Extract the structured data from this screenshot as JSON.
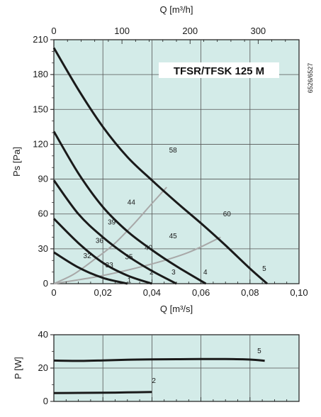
{
  "colors": {
    "plot_bg": "#d3ebe8",
    "grid": "#555555",
    "curve": "#1a1a1a",
    "rpm_line": "#a8a8a8"
  },
  "chart_data": [
    {
      "type": "line",
      "title": "TFSR/TFSK 125 M",
      "code": "6526/6527",
      "xlabel": "Q [m³/s]",
      "x2label": "Q [m³/h]",
      "ylabel": "Ps [Pa]",
      "xlim": [
        0,
        0.1
      ],
      "ylim": [
        0,
        210
      ],
      "x2lim": [
        0,
        360
      ],
      "x_ticks": [
        "0",
        "0,02",
        "0,04",
        "0,06",
        "0,08",
        "0,10"
      ],
      "x2_ticks": [
        "0",
        "100",
        "200",
        "300"
      ],
      "y_ticks": [
        "0",
        "30",
        "60",
        "90",
        "120",
        "150",
        "180",
        "210"
      ],
      "grid": true,
      "series": [
        {
          "name": "1",
          "x": [
            0,
            0.01,
            0.02,
            0.03
          ],
          "y": [
            27,
            14,
            5,
            0
          ]
        },
        {
          "name": "2",
          "x": [
            0,
            0.01,
            0.02,
            0.03,
            0.04
          ],
          "y": [
            56,
            35,
            18,
            7,
            0
          ]
        },
        {
          "name": "3",
          "x": [
            0,
            0.01,
            0.02,
            0.03,
            0.04,
            0.05
          ],
          "y": [
            89,
            60,
            40,
            24,
            11,
            0
          ]
        },
        {
          "name": "4",
          "x": [
            0,
            0.01,
            0.02,
            0.03,
            0.04,
            0.05,
            0.062
          ],
          "y": [
            131,
            95,
            66,
            45,
            29,
            15,
            0
          ]
        },
        {
          "name": "5",
          "x": [
            0,
            0.01,
            0.02,
            0.03,
            0.04,
            0.05,
            0.06,
            0.07,
            0.08,
            0.087
          ],
          "y": [
            203,
            167,
            135,
            109,
            89,
            70,
            52,
            33,
            13,
            0
          ]
        }
      ],
      "rpm_lines": [
        {
          "x": [
            0,
            0.008,
            0.016,
            0.024,
            0.032,
            0.04,
            0.046
          ],
          "y": [
            0,
            8,
            20,
            33,
            50,
            69,
            83
          ]
        },
        {
          "x": [
            0,
            0.02,
            0.04,
            0.055,
            0.068
          ],
          "y": [
            0,
            7,
            17,
            27,
            40
          ]
        }
      ],
      "labels": [
        {
          "text": "1",
          "x": 0.03,
          "y": 1
        },
        {
          "text": "2",
          "x": 0.039,
          "y": 8
        },
        {
          "text": "3",
          "x": 0.048,
          "y": 8
        },
        {
          "text": "4",
          "x": 0.061,
          "y": 8
        },
        {
          "text": "5",
          "x": 0.085,
          "y": 11
        },
        {
          "text": "32",
          "x": 0.012,
          "y": 22
        },
        {
          "text": "33",
          "x": 0.021,
          "y": 14
        },
        {
          "text": "35",
          "x": 0.029,
          "y": 21
        },
        {
          "text": "36",
          "x": 0.017,
          "y": 35
        },
        {
          "text": "39",
          "x": 0.022,
          "y": 51
        },
        {
          "text": "40",
          "x": 0.037,
          "y": 29
        },
        {
          "text": "44",
          "x": 0.03,
          "y": 68
        },
        {
          "text": "45",
          "x": 0.047,
          "y": 39
        },
        {
          "text": "58",
          "x": 0.047,
          "y": 113
        },
        {
          "text": "60",
          "x": 0.069,
          "y": 58
        }
      ]
    },
    {
      "type": "line",
      "ylabel": "P [W]",
      "xlim": [
        0,
        0.1
      ],
      "ylim": [
        0,
        40
      ],
      "y_ticks": [
        "0",
        "20",
        "40"
      ],
      "grid": true,
      "series": [
        {
          "name": "5",
          "x": [
            0,
            0.01,
            0.02,
            0.03,
            0.04,
            0.05,
            0.06,
            0.07,
            0.08,
            0.086
          ],
          "y": [
            24.5,
            24.3,
            24.6,
            25,
            25.2,
            25.3,
            25.4,
            25.4,
            25.1,
            24.4
          ]
        },
        {
          "name": "2",
          "x": [
            0,
            0.01,
            0.02,
            0.03,
            0.04
          ],
          "y": [
            5,
            5.1,
            5.2,
            5.4,
            5.6
          ]
        }
      ],
      "labels": [
        {
          "text": "5",
          "x": 0.083,
          "y": 29
        },
        {
          "text": "2",
          "x": 0.04,
          "y": 11
        }
      ]
    }
  ]
}
